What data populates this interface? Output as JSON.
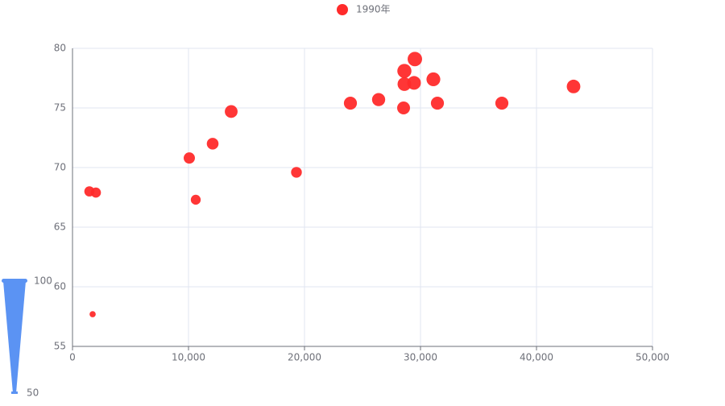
{
  "chart_data": {
    "type": "scatter",
    "legend_position": "top",
    "series": [
      {
        "name": "1990年",
        "color": "#ff2b2b",
        "x": [
          1736,
          1458,
          2014,
          10069,
          10625,
          12083,
          13681,
          19306,
          23958,
          26389,
          28542,
          28611,
          28611,
          29444,
          29514,
          31111,
          31458,
          37014,
          43194
        ],
        "y": [
          57.7,
          68.0,
          67.9,
          70.8,
          67.3,
          72.0,
          74.7,
          69.6,
          75.4,
          75.7,
          75.0,
          77.0,
          78.1,
          77.1,
          79.1,
          77.4,
          75.4,
          75.4,
          76.8
        ]
      }
    ],
    "xlim": [
      0,
      50000
    ],
    "xticks": [
      0,
      {
        "value": 10000,
        "label": "10,000"
      },
      {
        "value": 20000,
        "label": "20,000"
      },
      {
        "value": 30000,
        "label": "30,000"
      },
      {
        "value": 40000,
        "label": "40,000"
      },
      {
        "value": 50000,
        "label": "50,000"
      }
    ],
    "ylim": [
      55,
      80
    ],
    "yticks": [
      55,
      60,
      65,
      70,
      75,
      80
    ],
    "grid": true,
    "visual_map": {
      "min": 50,
      "max": 100,
      "color": "#5b93f3"
    }
  }
}
